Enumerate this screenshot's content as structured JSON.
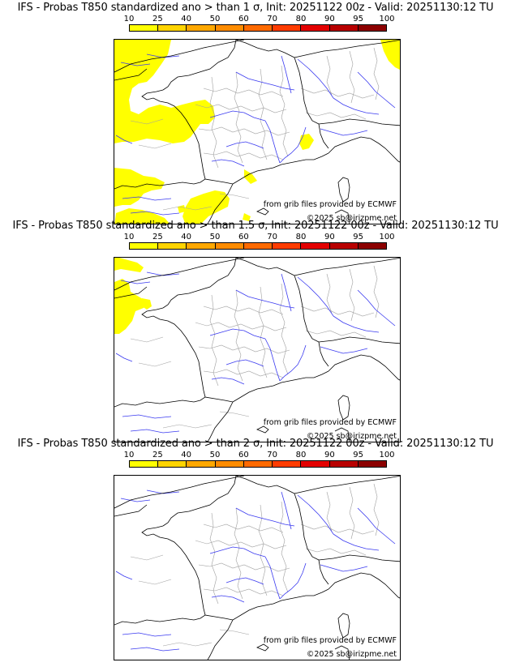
{
  "colorbar": {
    "ticks": [
      "10",
      "25",
      "40",
      "50",
      "60",
      "70",
      "80",
      "90",
      "95",
      "100"
    ],
    "colors": [
      "#ffff00",
      "#ffd400",
      "#ffa800",
      "#ff8c00",
      "#ff6a00",
      "#ff3c00",
      "#e30000",
      "#b80000",
      "#8c0000",
      "#5a0000"
    ]
  },
  "panels": [
    {
      "title": "IFS - Probas T850  standardized ano > than 1 σ, Init: 20251122 00z - Valid: 20251130:12 TU",
      "credit_source": "from grib files provided by ECMWF",
      "credit_copyright": "©2025 sb@irizpme.net",
      "shaded_probability_class": "10-25",
      "coverage": "broad"
    },
    {
      "title": "IFS - Probas T850  standardized ano > than 1.5 σ, Init: 20251122 00z - Valid: 20251130:12 TU",
      "credit_source": "from grib files provided by ECMWF",
      "credit_copyright": "©2025 sb@irizpme.net",
      "shaded_probability_class": "10-25",
      "coverage": "small"
    },
    {
      "title": "IFS - Probas T850  standardized ano > than 2 σ, Init: 20251122 00z - Valid: 20251130:12 TU",
      "credit_source": "from grib files provided by ECMWF",
      "credit_copyright": "©2025 sb@irizpme.net",
      "shaded_probability_class": "none",
      "coverage": "none"
    }
  ],
  "map_colors": {
    "coast": "#000000",
    "rivers": "#3a3af0",
    "admin": "#a0a0a0",
    "shading": "#ffff00"
  }
}
